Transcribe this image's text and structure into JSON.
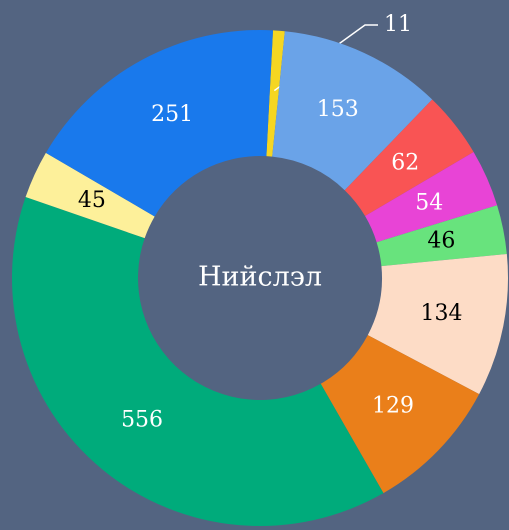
{
  "chart_data": {
    "type": "donut",
    "center_label": "Нийслэл",
    "values": [
      11,
      153,
      62,
      54,
      46,
      134,
      129,
      556,
      45,
      251
    ],
    "colors": [
      "#f5d622",
      "#6aa3e8",
      "#f95454",
      "#e844d6",
      "#68e37d",
      "#fddcc6",
      "#ea7f1a",
      "#00ab7b",
      "#fdf09a",
      "#1979ec"
    ],
    "label_colors": [
      "#ffffff",
      "#ffffff",
      "#ffffff",
      "#ffffff",
      "#000000",
      "#000000",
      "#ffffff",
      "#ffffff",
      "#000000",
      "#ffffff"
    ]
  }
}
